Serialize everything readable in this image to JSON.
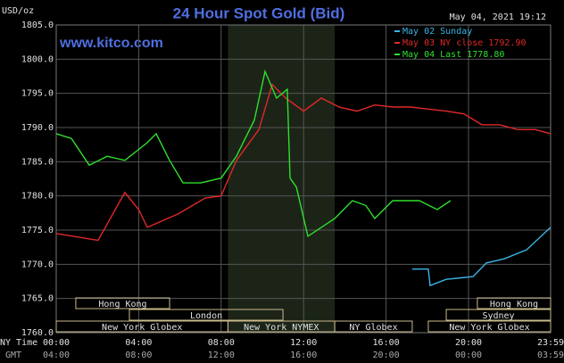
{
  "chart_data": {
    "type": "line",
    "title": "24 Hour Spot Gold (Bid)",
    "site": "www.kitco.com",
    "y_unit": "USD/oz",
    "timestamp": "May 04, 2021 19:12",
    "x_label": "NY Time",
    "x2_label": "GMT",
    "xlim": [
      0,
      23.983
    ],
    "xticks": [
      {
        "value": 0,
        "label": "00:00"
      },
      {
        "value": 4,
        "label": "04:00"
      },
      {
        "value": 8,
        "label": "08:00"
      },
      {
        "value": 12,
        "label": "12:00"
      },
      {
        "value": 16,
        "label": "16:00"
      },
      {
        "value": 20,
        "label": "20:00"
      },
      {
        "value": 23.983,
        "label": "23:59"
      }
    ],
    "x2_labels": [
      "04:00",
      "08:00",
      "12:00",
      "16:00",
      "20:00",
      "00:00",
      "03:59"
    ],
    "ylim": [
      1760,
      1805
    ],
    "yticks": [
      {
        "value": 1760,
        "label": "1760.0"
      },
      {
        "value": 1765,
        "label": "1765.0"
      },
      {
        "value": 1770,
        "label": "1770.0"
      },
      {
        "value": 1775,
        "label": "1775.0"
      },
      {
        "value": 1780,
        "label": "1780.0"
      },
      {
        "value": 1785,
        "label": "1785.0"
      },
      {
        "value": 1790,
        "label": "1790.0"
      },
      {
        "value": 1795,
        "label": "1795.0"
      },
      {
        "value": 1800,
        "label": "1800.0"
      },
      {
        "value": 1805,
        "label": "1805.0"
      }
    ],
    "grid": true,
    "series": [
      {
        "name": "May 02 Sunday",
        "color": "#3cb4e6",
        "x": [
          17.27,
          18.05,
          18.14,
          18.92,
          20.22,
          20.87,
          21.73,
          22.81,
          23.983
        ],
        "values": [
          1769.3,
          1769.3,
          1766.9,
          1767.8,
          1768.2,
          1770.2,
          1770.8,
          1772.1,
          1775.4
        ]
      },
      {
        "name": "May 03 NY close 1792.90",
        "color": "#e02828",
        "x": [
          0,
          2.03,
          3.33,
          4,
          4.42,
          5.93,
          7.23,
          8,
          8.74,
          9.83,
          10.48,
          11.13,
          12,
          12.86,
          13.72,
          14.59,
          15.45,
          16.32,
          17.19,
          18.05,
          18.92,
          19.78,
          20.65,
          21.52,
          22.38,
          23.25,
          23.983
        ],
        "values": [
          1774.5,
          1773.5,
          1780.5,
          1778,
          1775.4,
          1777.4,
          1779.7,
          1780,
          1785.2,
          1789.7,
          1796.3,
          1794.3,
          1792.4,
          1794.3,
          1793,
          1792.4,
          1793.3,
          1793,
          1793,
          1792.7,
          1792.4,
          1792,
          1790.4,
          1790.4,
          1789.7,
          1789.7,
          1789.1
        ]
      },
      {
        "name": "May 04 Last 1778.80",
        "color": "#2ee02e",
        "x": [
          0,
          0.74,
          1.6,
          2.47,
          3.33,
          4.42,
          4.85,
          5.5,
          6.15,
          7.01,
          8,
          8.74,
          9.61,
          10.13,
          10.69,
          11.21,
          11.34,
          11.65,
          12.21,
          12.86,
          13.51,
          14.37,
          15.02,
          15.45,
          16.32,
          17.62,
          18.48,
          19.13
        ],
        "values": [
          1789.1,
          1788.4,
          1784.5,
          1785.8,
          1785.2,
          1787.8,
          1789.1,
          1785.2,
          1781.9,
          1781.9,
          1782.6,
          1785.8,
          1791.1,
          1798.2,
          1794.3,
          1795.6,
          1782.6,
          1781.3,
          1774.1,
          1775.4,
          1776.7,
          1779.3,
          1778.6,
          1776.7,
          1779.3,
          1779.3,
          1778,
          1779.3
        ]
      }
    ],
    "session_rows": [
      [
        {
          "label": "Hong Kong",
          "start": 0.95,
          "end": 5.5
        },
        {
          "label": "Hong Kong",
          "start": 20.43,
          "end": 23.983
        }
      ],
      [
        {
          "label": "London",
          "start": 3.55,
          "end": 11
        },
        {
          "label": "Sydney",
          "start": 18.92,
          "end": 23.983
        }
      ],
      [
        {
          "label": "New York Globex",
          "start": 0,
          "end": 8.33
        },
        {
          "label": "New York NYMEX",
          "start": 8.33,
          "end": 13.51
        },
        {
          "label": "NY Globex",
          "start": 13.51,
          "end": 17.27
        },
        {
          "label": "New York Globex",
          "start": 18.05,
          "end": 23.983
        }
      ]
    ]
  }
}
